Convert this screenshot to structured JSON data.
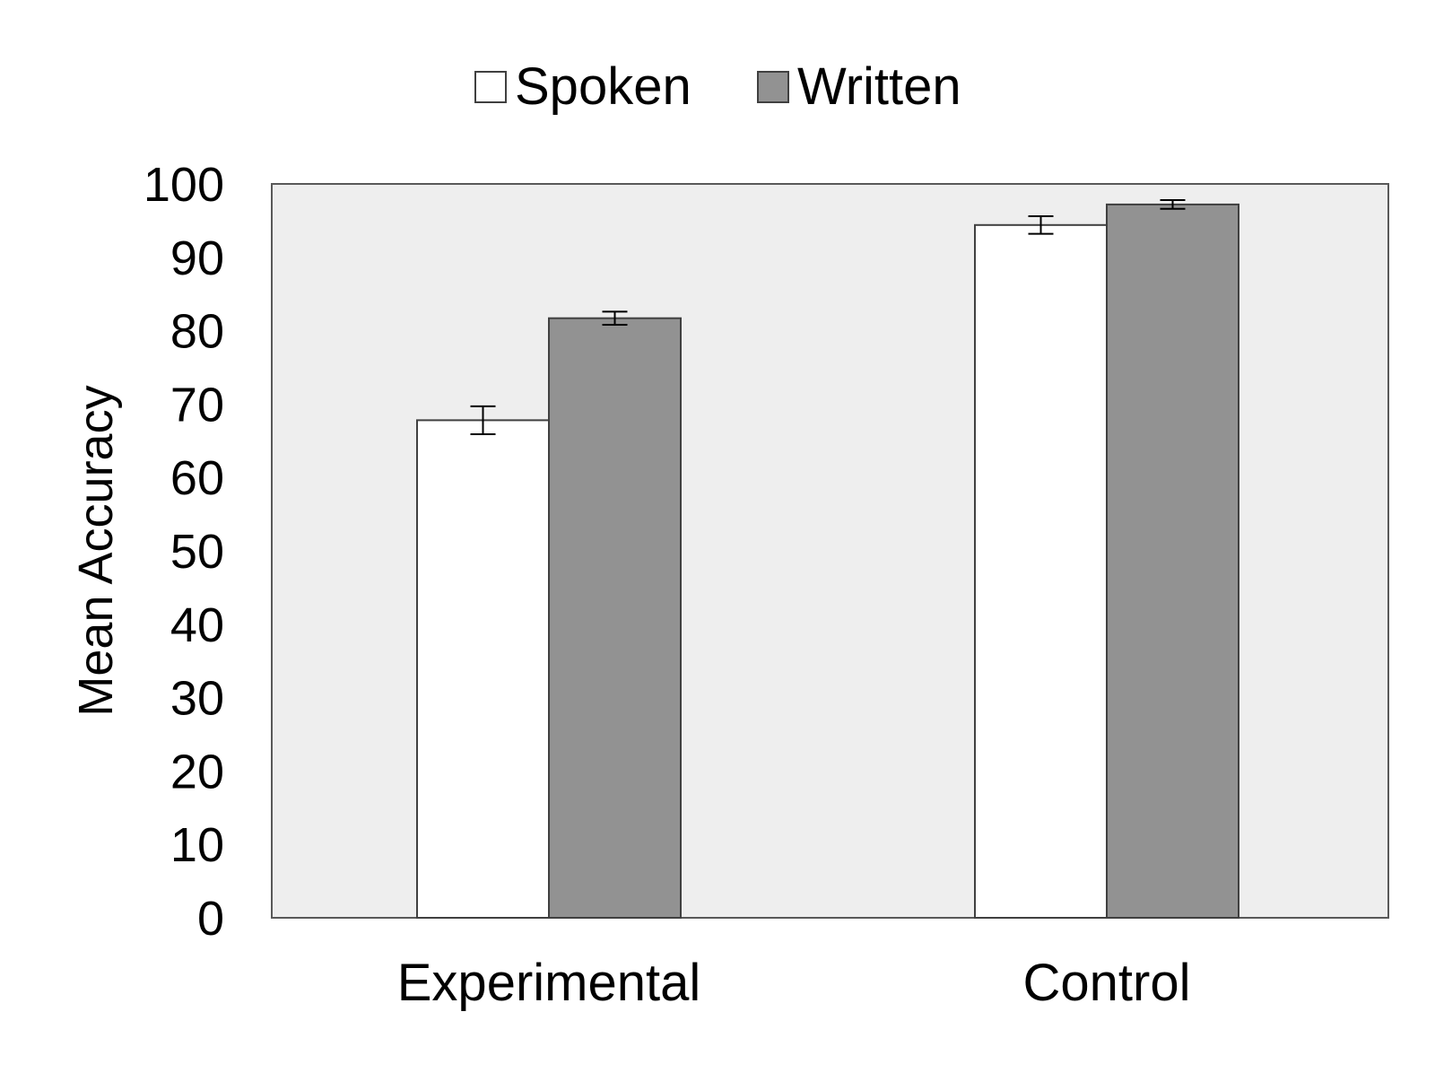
{
  "chart_data": {
    "type": "bar",
    "title": "",
    "xlabel": "",
    "ylabel": "Mean Accuracy",
    "categories": [
      "Experimental",
      "Control"
    ],
    "series": [
      {
        "name": "Spoken",
        "values": [
          67.8,
          94.4
        ],
        "errors": [
          1.9,
          1.2
        ],
        "color": "#ffffff"
      },
      {
        "name": "Written",
        "values": [
          81.7,
          97.2
        ],
        "errors": [
          0.9,
          0.6
        ],
        "color": "#929292"
      }
    ],
    "ylim": [
      0,
      100
    ],
    "yticks": [
      0,
      10,
      20,
      30,
      40,
      50,
      60,
      70,
      80,
      90,
      100
    ],
    "grid": false,
    "legend": "top-center",
    "plot_background": "#eeeeee",
    "border_color": "#595959"
  }
}
